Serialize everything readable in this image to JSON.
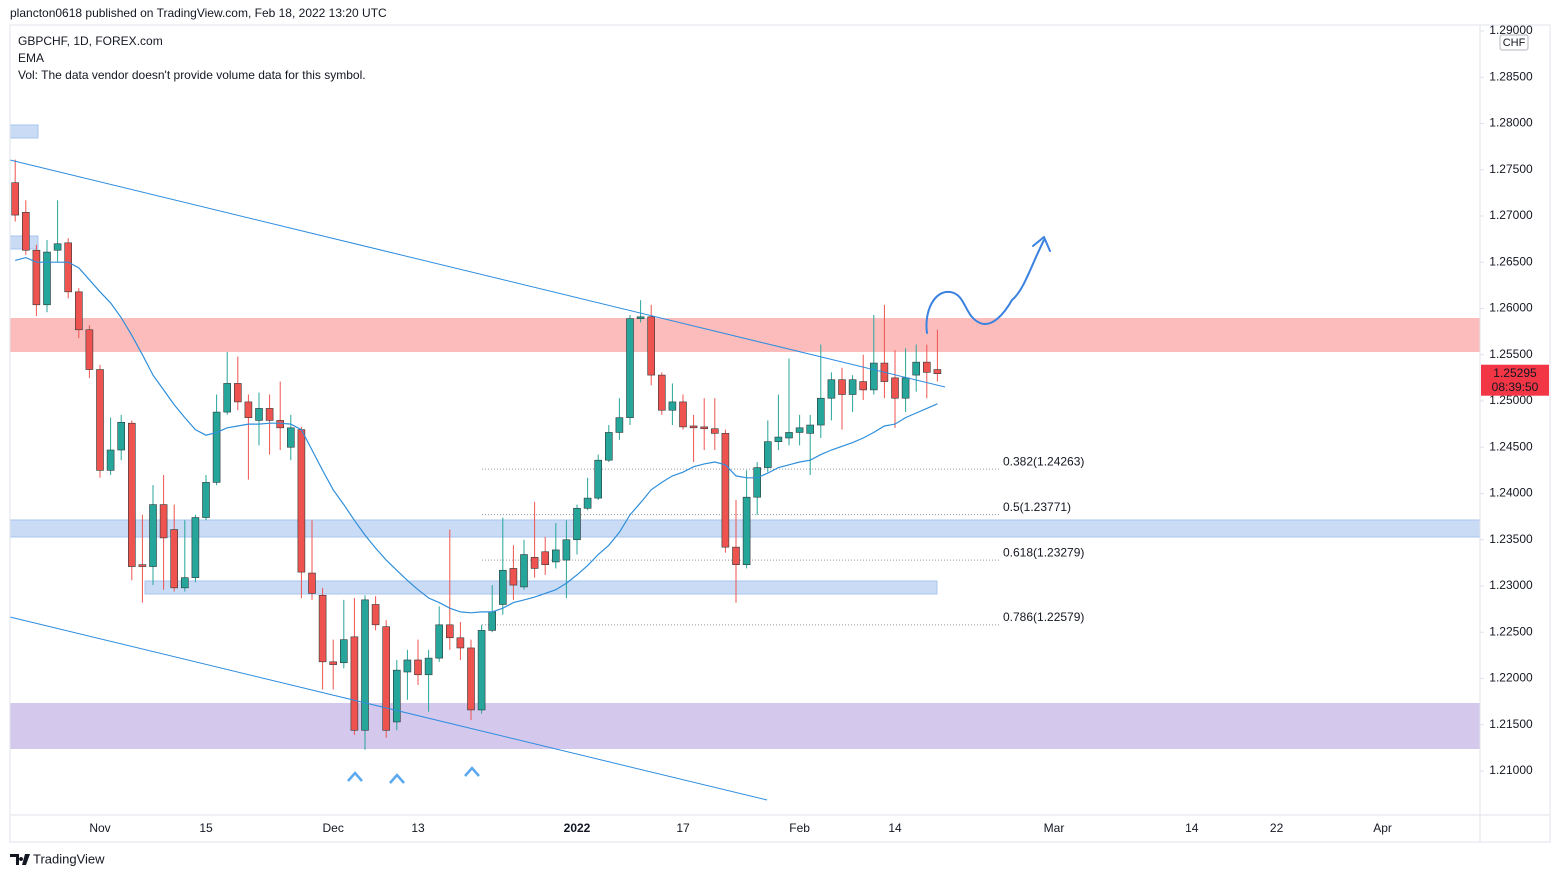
{
  "header": "plancton0618 published on TradingView.com, Feb 18, 2022 13:20 UTC",
  "footer": {
    "brand": "TradingView"
  },
  "chart_data": {
    "type": "candlestick",
    "title": "GBPCHF, 1D, FOREX.com",
    "note": "Vol: The data vendor doesn't provide volume data for this symbol.",
    "currency": "CHF",
    "last_price": 1.25295,
    "countdown": "08:39:50",
    "up_color": "#26a69a",
    "down_color": "#ef5350",
    "border_color": "#2f3a3a",
    "grid": false,
    "ylim": [
      1.20524,
      1.29065
    ],
    "yticks": [
      {
        "value": 1.21,
        "label": "1.21000"
      },
      {
        "value": 1.215,
        "label": "1.21500"
      },
      {
        "value": 1.22,
        "label": "1.22000"
      },
      {
        "value": 1.225,
        "label": "1.22500"
      },
      {
        "value": 1.23,
        "label": "1.23000"
      },
      {
        "value": 1.235,
        "label": "1.23500"
      },
      {
        "value": 1.24,
        "label": "1.24000"
      },
      {
        "value": 1.245,
        "label": "1.24500"
      },
      {
        "value": 1.25,
        "label": "1.25000"
      },
      {
        "value": 1.255,
        "label": "1.25500"
      },
      {
        "value": 1.26,
        "label": "1.26000"
      },
      {
        "value": 1.265,
        "label": "1.26500"
      },
      {
        "value": 1.27,
        "label": "1.27000"
      },
      {
        "value": 1.275,
        "label": "1.27500"
      },
      {
        "value": 1.28,
        "label": "1.28000"
      },
      {
        "value": 1.285,
        "label": "1.28500"
      },
      {
        "value": 1.29,
        "label": "1.29000"
      }
    ],
    "categories": [
      null,
      null,
      null,
      null,
      null,
      null,
      null,
      null,
      "Nov",
      null,
      null,
      null,
      null,
      null,
      null,
      null,
      null,
      null,
      "15",
      null,
      null,
      null,
      null,
      null,
      null,
      null,
      null,
      null,
      null,
      null,
      "Dec",
      null,
      null,
      null,
      null,
      null,
      null,
      null,
      "13",
      null,
      null,
      null,
      null,
      null,
      null,
      null,
      null,
      null,
      null,
      null,
      null,
      null,
      null,
      "2022",
      null,
      null,
      null,
      null,
      null,
      null,
      null,
      null,
      null,
      "17",
      null,
      null,
      null,
      null,
      null,
      null,
      null,
      null,
      null,
      null,
      "Feb",
      null,
      null,
      null,
      null,
      null,
      null,
      null,
      null,
      "14",
      null,
      null,
      null,
      null,
      null,
      null,
      null,
      null,
      null,
      null,
      null,
      null,
      null,
      null,
      "Mar",
      null,
      null,
      null,
      null,
      null,
      null,
      null,
      null,
      null,
      null,
      null,
      null,
      "14",
      null,
      null,
      null,
      null,
      null,
      null,
      null,
      "22",
      null,
      null,
      null,
      null,
      null,
      null,
      null,
      null,
      null,
      "Apr",
      null,
      null,
      null,
      null,
      null,
      null,
      null,
      null,
      null
    ],
    "open": [
      1.2736,
      1.2704,
      1.2663,
      1.2604,
      1.2663,
      1.2671,
      1.2618,
      1.2577,
      1.2534,
      1.2425,
      1.2447,
      1.2476,
      1.2323,
      1.2321,
      1.2388,
      1.2361,
      1.2298,
      1.2309,
      1.2374,
      1.2412,
      1.2488,
      1.2519,
      1.2499,
      1.2479,
      1.2492,
      1.2479,
      1.245,
      1.2469,
      1.2314,
      1.229,
      1.2218,
      1.2217,
      1.2245,
      1.2144,
      1.228,
      1.2256,
      1.2153,
      1.2207,
      1.222,
      1.2204,
      1.2222,
      1.2258,
      1.2244,
      1.2233,
      1.2166,
      1.2252,
      1.228,
      1.2319,
      1.2299,
      1.2331,
      1.2337,
      1.2326,
      1.2328,
      1.235,
      1.2384,
      1.2395,
      1.2436,
      1.2466,
      1.2482,
      1.2589,
      1.2591,
      1.2528,
      1.249,
      1.2499,
      1.2473,
      1.2472,
      1.247,
      1.2465,
      1.2342,
      1.2323,
      1.2396,
      1.2428,
      1.2456,
      1.246,
      1.2466,
      1.2465,
      1.2474,
      1.2503,
      1.2523,
      1.2507,
      1.2521,
      1.2512,
      1.2541,
      1.2525,
      1.2503,
      1.2528,
      1.2542,
      1.2534,
      null,
      null,
      null,
      null,
      null,
      null,
      null,
      null,
      null,
      null,
      null,
      null,
      null,
      null,
      null,
      null,
      null,
      null,
      null,
      null,
      null,
      null,
      null,
      null,
      null,
      null,
      null,
      null,
      null,
      null,
      null,
      null,
      null,
      null,
      null,
      null,
      null,
      null,
      null,
      null,
      null,
      null,
      null,
      null,
      null,
      null,
      null,
      null,
      null,
      null,
      null
    ],
    "high": [
      1.2761,
      1.2717,
      1.2669,
      1.2674,
      1.2717,
      1.2676,
      1.2622,
      1.2582,
      1.2539,
      1.2482,
      1.2485,
      1.2479,
      1.2377,
      1.2409,
      1.242,
      1.2388,
      1.2371,
      1.2377,
      1.242,
      1.2507,
      1.2553,
      1.2548,
      1.2507,
      1.2509,
      1.2507,
      1.2521,
      1.2485,
      1.2472,
      1.2371,
      1.2298,
      1.2242,
      1.2285,
      1.2287,
      1.229,
      1.2289,
      1.2263,
      1.222,
      1.2231,
      1.2242,
      1.2231,
      1.2278,
      1.2361,
      1.2261,
      1.2242,
      1.2258,
      1.2301,
      1.2374,
      1.2344,
      1.235,
      1.2391,
      1.2353,
      1.2368,
      1.2371,
      1.2388,
      1.2417,
      1.2442,
      1.2474,
      1.2503,
      1.2593,
      1.2609,
      1.2604,
      1.2531,
      1.2519,
      1.2507,
      1.2485,
      1.2503,
      1.2503,
      1.2469,
      1.2393,
      1.2425,
      1.2434,
      1.2479,
      1.2507,
      1.2546,
      1.2485,
      1.2485,
      1.2561,
      1.2531,
      1.2536,
      1.2528,
      1.255,
      1.2593,
      1.2604,
      1.2555,
      1.2557,
      1.2561,
      1.2561,
      1.2577,
      null,
      null,
      null,
      null,
      null,
      null,
      null,
      null,
      null,
      null,
      null,
      null,
      null,
      null,
      null,
      null,
      null,
      null,
      null,
      null,
      null,
      null,
      null,
      null,
      null,
      null,
      null,
      null,
      null,
      null,
      null,
      null,
      null,
      null,
      null,
      null,
      null,
      null,
      null,
      null,
      null,
      null,
      null,
      null,
      null,
      null,
      null,
      null,
      null,
      null,
      null
    ],
    "low": [
      1.2694,
      1.2658,
      1.2592,
      1.2596,
      1.265,
      1.2611,
      1.2568,
      1.2525,
      1.2417,
      1.242,
      1.2436,
      1.2306,
      1.2282,
      1.2301,
      1.2296,
      1.2294,
      1.2294,
      1.2304,
      1.2371,
      1.2409,
      1.2485,
      1.249,
      1.2415,
      1.2452,
      1.2442,
      1.2447,
      1.2436,
      1.2287,
      1.2285,
      1.2188,
      1.2188,
      1.2211,
      1.2139,
      1.2123,
      1.2252,
      1.2136,
      1.2144,
      1.2177,
      1.2193,
      1.2164,
      1.2218,
      1.2231,
      1.222,
      1.2155,
      1.2162,
      1.225,
      1.2269,
      1.2285,
      1.2296,
      1.2309,
      1.2312,
      1.2319,
      1.2287,
      1.2334,
      1.2382,
      1.2393,
      1.2434,
      1.2458,
      1.2474,
      1.2585,
      1.2517,
      1.2485,
      1.2474,
      1.2469,
      1.2434,
      1.2447,
      1.2447,
      1.2336,
      1.2282,
      1.2319,
      1.2377,
      1.2423,
      1.2447,
      1.2452,
      1.2452,
      1.242,
      1.246,
      1.2479,
      1.2469,
      1.2488,
      1.2501,
      1.2507,
      1.2503,
      1.2471,
      1.2488,
      1.251,
      1.2503,
      1.2521,
      null,
      null,
      null,
      null,
      null,
      null,
      null,
      null,
      null,
      null,
      null,
      null,
      null,
      null,
      null,
      null,
      null,
      null,
      null,
      null,
      null,
      null,
      null,
      null,
      null,
      null,
      null,
      null,
      null,
      null,
      null,
      null,
      null,
      null,
      null,
      null,
      null,
      null,
      null,
      null,
      null,
      null,
      null,
      null,
      null,
      null,
      null,
      null,
      null,
      null,
      null
    ],
    "close": [
      1.2701,
      1.2663,
      1.2604,
      1.2661,
      1.267,
      1.2618,
      1.2577,
      1.2534,
      1.2425,
      1.2447,
      1.2477,
      1.2321,
      1.2321,
      1.2388,
      1.2352,
      1.2298,
      1.2309,
      1.2374,
      1.2412,
      1.2488,
      1.2519,
      1.2499,
      1.2482,
      1.2492,
      1.2479,
      1.2471,
      1.2471,
      1.2315,
      1.2292,
      1.2218,
      1.2215,
      1.2242,
      1.2144,
      1.2285,
      1.2258,
      1.2144,
      1.2209,
      1.222,
      1.2204,
      1.2222,
      1.2258,
      1.2244,
      1.2233,
      1.2166,
      1.2252,
      1.2272,
      1.2317,
      1.2301,
      1.2334,
      1.2319,
      1.2323,
      1.2339,
      1.235,
      1.2384,
      1.2395,
      1.2436,
      1.2466,
      1.2482,
      1.2589,
      1.2591,
      1.2528,
      1.249,
      1.2499,
      1.2472,
      1.2471,
      1.247,
      1.2465,
      1.2342,
      1.2323,
      1.2396,
      1.2428,
      1.2456,
      1.2461,
      1.2466,
      1.2471,
      1.2474,
      1.2503,
      1.2523,
      1.2507,
      1.2523,
      1.2512,
      1.2541,
      1.2521,
      1.2503,
      1.2525,
      1.2542,
      1.2531,
      1.25295,
      null,
      null,
      null,
      null,
      null,
      null,
      null,
      null,
      null,
      null,
      null,
      null,
      null,
      null,
      null,
      null,
      null,
      null,
      null,
      null,
      null,
      null,
      null,
      null,
      null,
      null,
      null,
      null,
      null,
      null,
      null,
      null,
      null,
      null,
      null,
      null,
      null,
      null,
      null,
      null,
      null,
      null,
      null,
      null,
      null,
      null,
      null,
      null,
      null,
      null,
      null
    ],
    "series": [
      {
        "name": "EMA",
        "color": "#2f8fdb",
        "values": [
          1.2652,
          1.2655,
          1.265,
          1.265,
          1.265,
          1.265,
          1.2644,
          1.2631,
          1.2618,
          1.2606,
          1.259,
          1.2571,
          1.255,
          1.2528,
          1.2512,
          1.2496,
          1.2482,
          1.2469,
          1.2463,
          1.2466,
          1.2471,
          1.2473,
          1.2475,
          1.2475,
          1.2476,
          1.2476,
          1.2475,
          1.2469,
          1.2447,
          1.2425,
          1.2404,
          1.2388,
          1.2371,
          1.2355,
          1.2341,
          1.2328,
          1.2317,
          1.2306,
          1.2296,
          1.2287,
          1.2282,
          1.2276,
          1.2272,
          1.2271,
          1.2272,
          1.2272,
          1.2276,
          1.2282,
          1.2285,
          1.2288,
          1.2292,
          1.2296,
          1.2303,
          1.2312,
          1.2322,
          1.2334,
          1.2344,
          1.2358,
          1.2377,
          1.239,
          1.2404,
          1.2412,
          1.2419,
          1.2423,
          1.2429,
          1.2432,
          1.2434,
          1.2431,
          1.2419,
          1.2417,
          1.2417,
          1.2422,
          1.2428,
          1.2431,
          1.2434,
          1.2436,
          1.2442,
          1.2447,
          1.2451,
          1.2455,
          1.246,
          1.2466,
          1.2473,
          1.2475,
          1.2482,
          1.2487,
          1.2492,
          1.2497,
          null,
          null,
          null,
          null,
          null,
          null,
          null,
          null,
          null,
          null,
          null,
          null,
          null,
          null,
          null,
          null,
          null,
          null,
          null,
          null,
          null,
          null,
          null,
          null,
          null,
          null,
          null,
          null,
          null,
          null,
          null,
          null,
          null,
          null,
          null,
          null,
          null,
          null,
          null,
          null,
          null,
          null,
          null,
          null,
          null,
          null,
          null,
          null,
          null,
          null,
          null
        ]
      }
    ],
    "fib_levels": [
      {
        "value": 1.24263,
        "label": "0.382(1.24263)"
      },
      {
        "value": 1.23771,
        "label": "0.5(1.23771)"
      },
      {
        "value": 1.23279,
        "label": "0.618(1.23279)"
      },
      {
        "value": 1.22579,
        "label": "0.786(1.22579)"
      }
    ]
  }
}
